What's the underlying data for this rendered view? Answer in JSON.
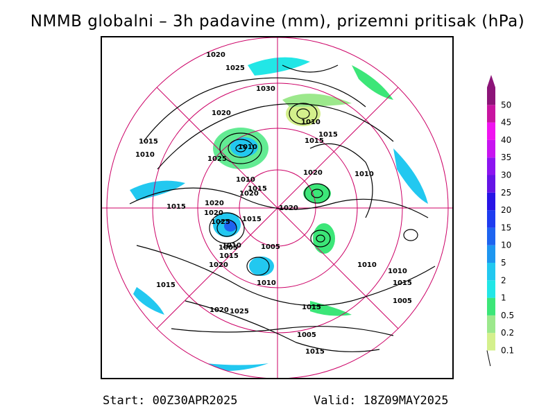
{
  "title": "NMMB globalni – 3h padavine (mm), prizemni pritisak (hPa)",
  "footer": {
    "start": "Start: 00Z30APR2025",
    "valid": "Valid: 18Z09MAY2025"
  },
  "legend": {
    "levels": [
      {
        "label": "0.1",
        "color": "#d4f08c"
      },
      {
        "label": "0.2",
        "color": "#9ce88c"
      },
      {
        "label": "0.5",
        "color": "#3ce678"
      },
      {
        "label": "1",
        "color": "#22e6e6"
      },
      {
        "label": "2",
        "color": "#22c8f0"
      },
      {
        "label": "5",
        "color": "#1e96f0"
      },
      {
        "label": "10",
        "color": "#1e64f0"
      },
      {
        "label": "15",
        "color": "#1e3cf0"
      },
      {
        "label": "20",
        "color": "#2814e6"
      },
      {
        "label": "25",
        "color": "#6414e6"
      },
      {
        "label": "30",
        "color": "#8c14f0"
      },
      {
        "label": "35",
        "color": "#c814f0"
      },
      {
        "label": "40",
        "color": "#f014f0"
      },
      {
        "label": "45",
        "color": "#c814a0"
      },
      {
        "label": "50",
        "color": "#8c1478"
      }
    ]
  },
  "isobars": {
    "labels": [
      "1020",
      "1025",
      "1030",
      "1020",
      "1025",
      "1015",
      "1010",
      "1025",
      "1020",
      "1010",
      "1015",
      "1015",
      "1010",
      "1020",
      "1020",
      "1015",
      "1015",
      "1020",
      "1010",
      "1010",
      "1020",
      "1015",
      "1005",
      "1010",
      "1005",
      "1010",
      "1015",
      "1020",
      "1010",
      "1005",
      "1005",
      "1015",
      "1015",
      "1020",
      "1025",
      "1015",
      "1010",
      "1015"
    ]
  }
}
